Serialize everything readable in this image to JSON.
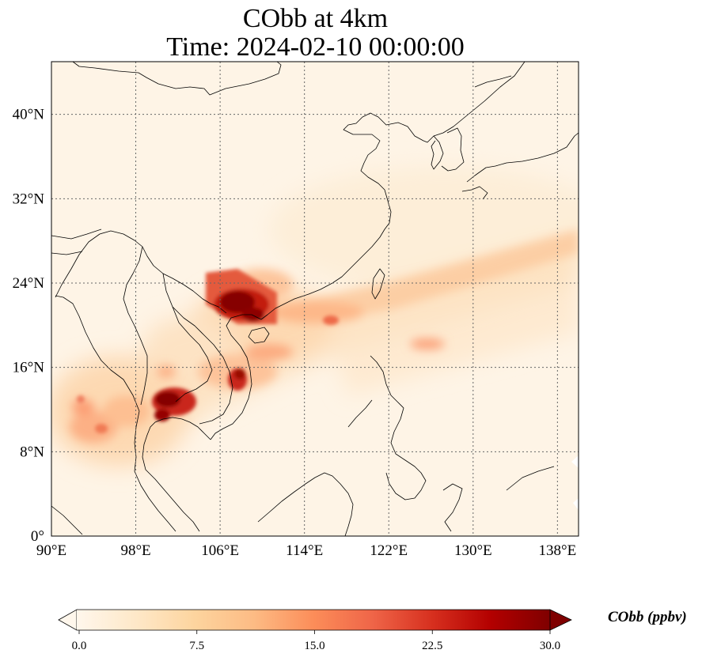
{
  "figure": {
    "title_line1": "CObb at 4km",
    "title_line2": "Time: 2024-02-10 00:00:00"
  },
  "map": {
    "extent": {
      "lon": [
        90,
        140
      ],
      "lat": [
        0,
        45
      ]
    },
    "lon_ticks": [
      "90°E",
      "98°E",
      "106°E",
      "114°E",
      "122°E",
      "130°E",
      "138°E"
    ],
    "lat_ticks": [
      "0°",
      "8°N",
      "16°N",
      "24°N",
      "32°N",
      "40°N"
    ],
    "lon_tick_values": [
      90,
      98,
      106,
      114,
      122,
      130,
      138
    ],
    "lat_tick_values": [
      0,
      8,
      16,
      24,
      32,
      40
    ],
    "gridlines": true
  },
  "colorbar": {
    "label": "CObb (ppbv)",
    "ticks": [
      "0.0",
      "7.5",
      "15.0",
      "22.5",
      "30.0"
    ],
    "range": [
      0,
      30
    ],
    "colormap": "OrRd",
    "colors": [
      "#fff7ec",
      "#fee8c8",
      "#fdd49e",
      "#fdbb84",
      "#fc8d59",
      "#ef6548",
      "#d7301f",
      "#b30000",
      "#7f0000"
    ]
  }
}
